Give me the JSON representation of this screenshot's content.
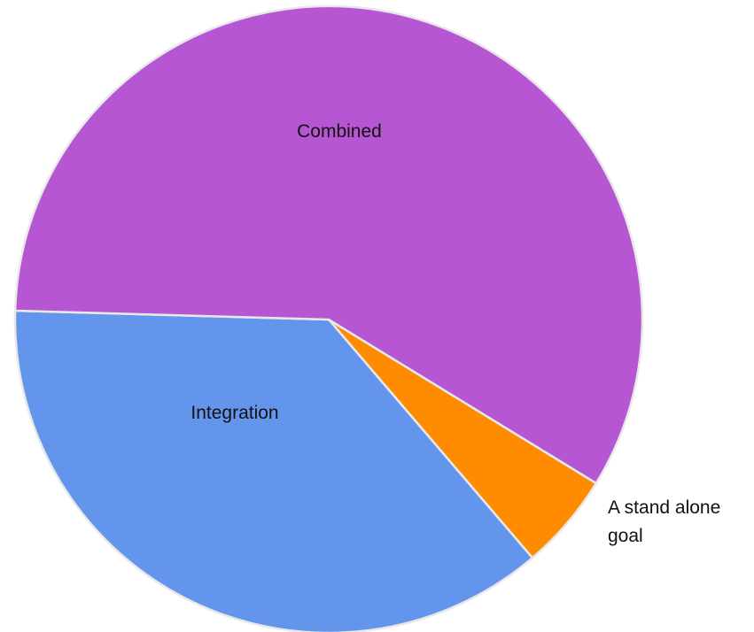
{
  "chart_data": {
    "type": "pie",
    "title": "",
    "slices": [
      {
        "label": "Combined",
        "value": 58.3,
        "color": "#b656d3"
      },
      {
        "label": "A stand alone goal",
        "value": 5.0,
        "color": "#ff8c00"
      },
      {
        "label": "Integration",
        "value": 36.7,
        "color": "#6495ed"
      }
    ],
    "legend": "none",
    "label_placement": "inside, except small slice labeled outside"
  }
}
